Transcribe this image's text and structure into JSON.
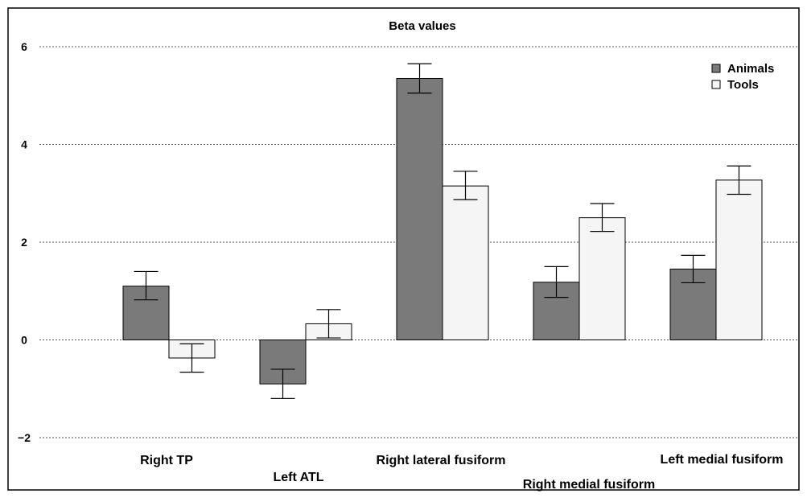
{
  "chart_data": {
    "type": "bar",
    "title": "Beta values",
    "xlabel": "",
    "ylabel": "",
    "ylim": [
      -2,
      6
    ],
    "yticks": [
      -2,
      0,
      2,
      4,
      6
    ],
    "ytick_labels": [
      "−2",
      "0",
      "2",
      "4",
      "6"
    ],
    "grid": true,
    "legend_position": "top-right",
    "categories": [
      "Right TP",
      "Left ATL",
      "Right lateral fusiform",
      "Right medial fusiform",
      "Left medial fusiform"
    ],
    "series": [
      {
        "name": "Animals",
        "color": "#7a7a7a",
        "values": [
          1.1,
          -0.9,
          5.35,
          1.18,
          1.45
        ],
        "error_low": [
          0.82,
          -1.2,
          5.05,
          0.87,
          1.17
        ],
        "error_high": [
          1.4,
          -0.6,
          5.65,
          1.5,
          1.73
        ]
      },
      {
        "name": "Tools",
        "color": "#f5f5f5",
        "values": [
          -0.37,
          0.33,
          3.15,
          2.5,
          3.27
        ],
        "error_low": [
          -0.66,
          0.04,
          2.87,
          2.22,
          2.98
        ],
        "error_high": [
          -0.08,
          0.62,
          3.45,
          2.79,
          3.56
        ]
      }
    ]
  }
}
